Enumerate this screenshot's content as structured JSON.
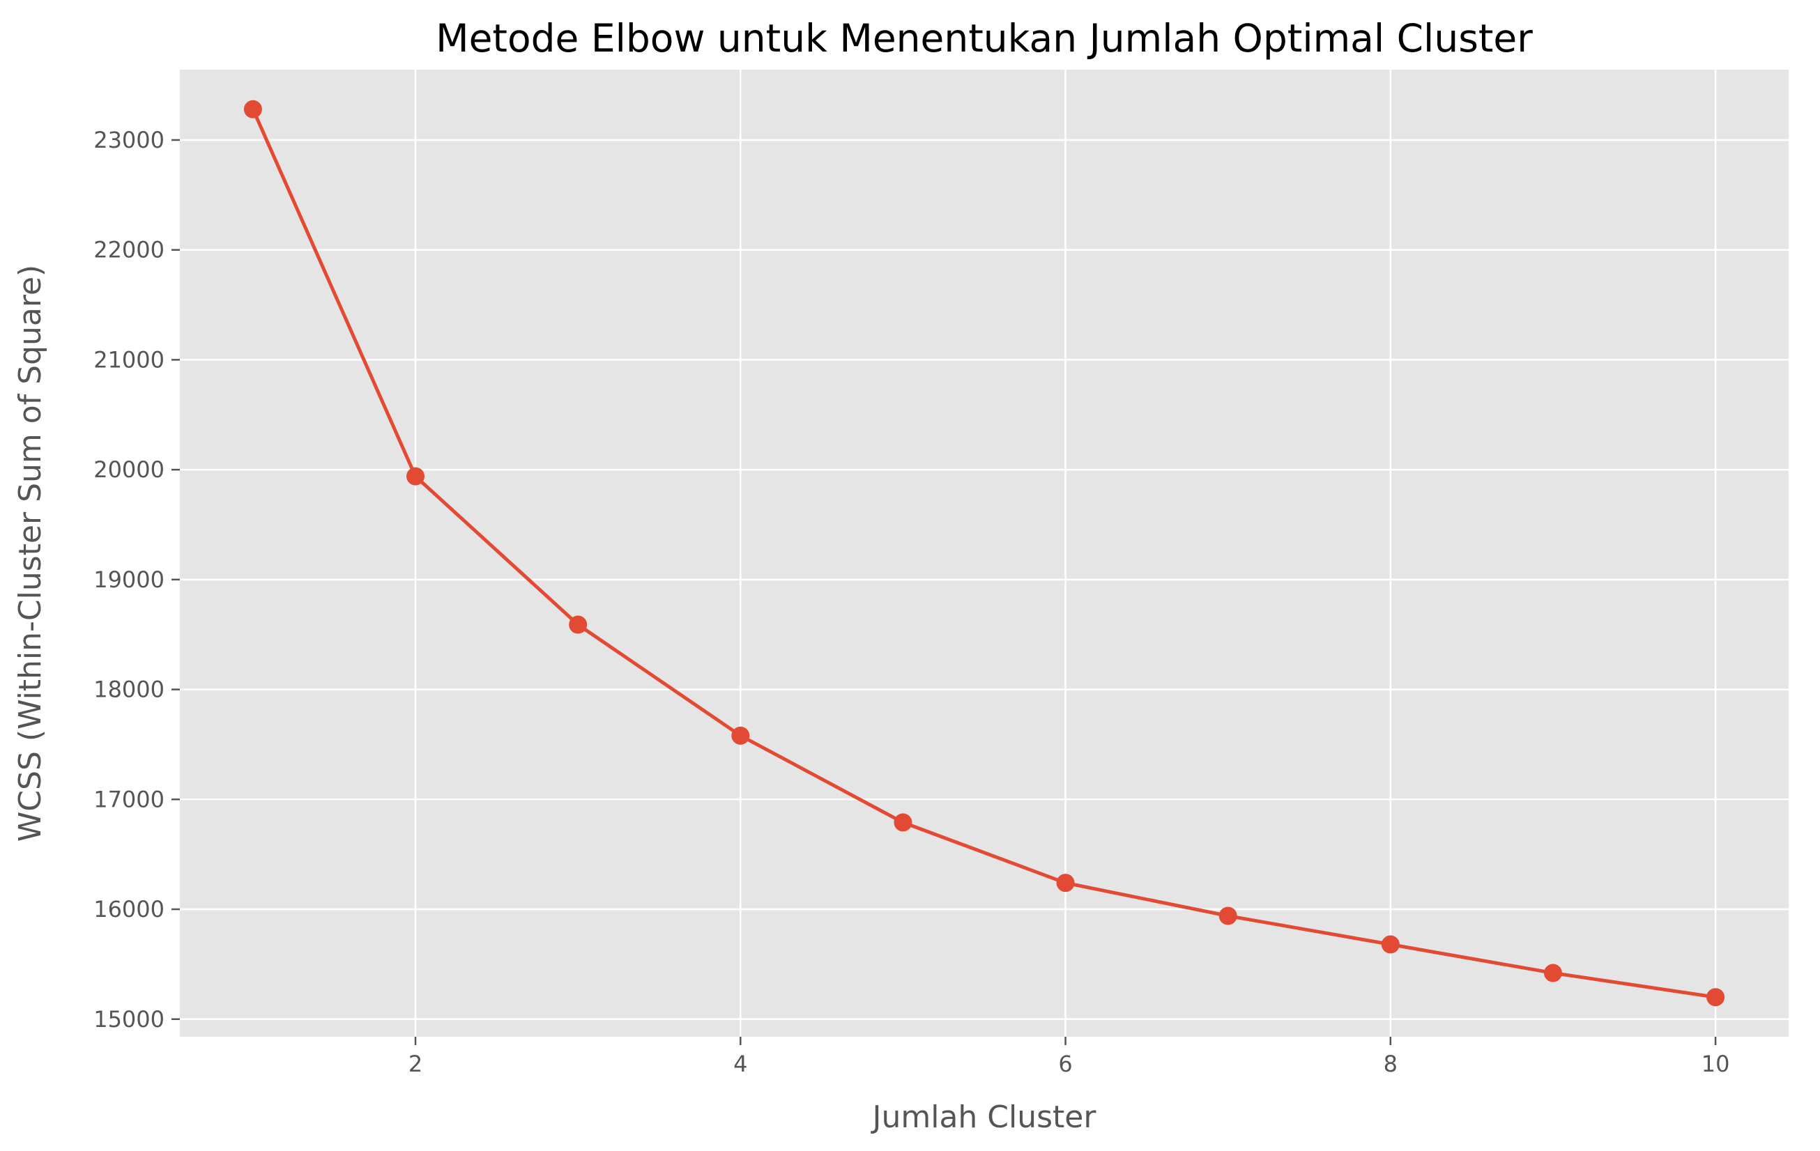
{
  "chart_data": {
    "type": "line",
    "title": "Metode Elbow untuk Menentukan Jumlah Optimal Cluster",
    "xlabel": "Jumlah Cluster",
    "ylabel": "WCSS (Within-Cluster Sum of Square)",
    "x": [
      1,
      2,
      3,
      4,
      5,
      6,
      7,
      8,
      9,
      10
    ],
    "series": [
      {
        "values": [
          23280,
          19940,
          18590,
          17580,
          16790,
          16240,
          15940,
          15680,
          15420,
          15200
        ]
      }
    ],
    "xlim": [
      0.55,
      10.45
    ],
    "ylim": [
      14840,
      23640
    ],
    "xticks": [
      2,
      4,
      6,
      8,
      10
    ],
    "yticks": [
      15000,
      16000,
      17000,
      18000,
      19000,
      20000,
      21000,
      22000,
      23000
    ],
    "grid": true,
    "marker": "circle",
    "colors": {
      "line": "#e24a33",
      "plot_background": "#e5e5e5",
      "grid": "#ffffff"
    }
  }
}
